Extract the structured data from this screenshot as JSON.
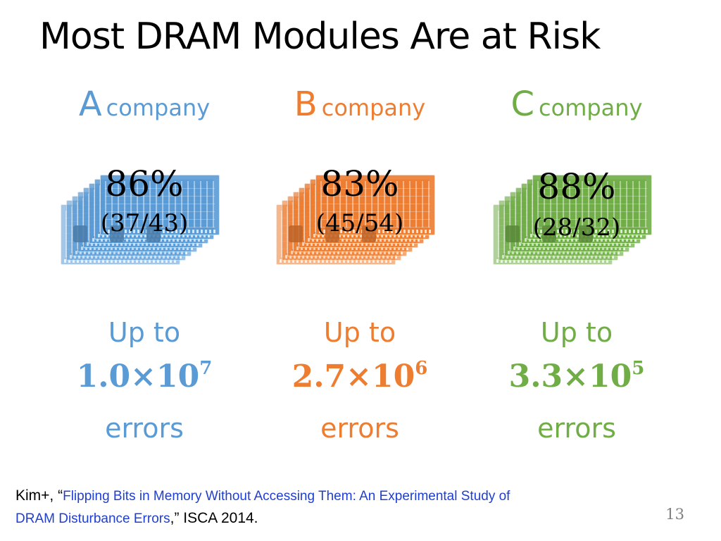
{
  "title": "Most DRAM Modules Are at Risk",
  "colors": {
    "A": "#5b9bd5",
    "B": "#ed7d31",
    "C": "#70ad47"
  },
  "columns": [
    {
      "letter": "A",
      "word": "company",
      "percent": "86%",
      "ratio": "(37/43)",
      "up_to": "Up to",
      "count_base": "1.0×10",
      "count_exp": "7",
      "errors": "errors",
      "color": "#5b9bd5",
      "icon": "dram-module-stack-icon"
    },
    {
      "letter": "B",
      "word": "company",
      "percent": "83%",
      "ratio": "(45/54)",
      "up_to": "Up to",
      "count_base": "2.7×10",
      "count_exp": "6",
      "errors": "errors",
      "color": "#ed7d31",
      "icon": "dram-module-stack-icon"
    },
    {
      "letter": "C",
      "word": "company",
      "percent": "88%",
      "ratio": "(28/32)",
      "up_to": "Up to",
      "count_base": "3.3×10",
      "count_exp": "5",
      "errors": "errors",
      "color": "#70ad47",
      "icon": "dram-module-stack-icon"
    }
  ],
  "citation": {
    "prefix": "Kim+, “",
    "paper_title_line1": "Flipping Bits in Memory Without Accessing Them: An Experimental Study of",
    "paper_title_line2": "DRAM Disturbance Errors",
    "suffix": ",” ISCA 2014."
  },
  "page_number": "13"
}
